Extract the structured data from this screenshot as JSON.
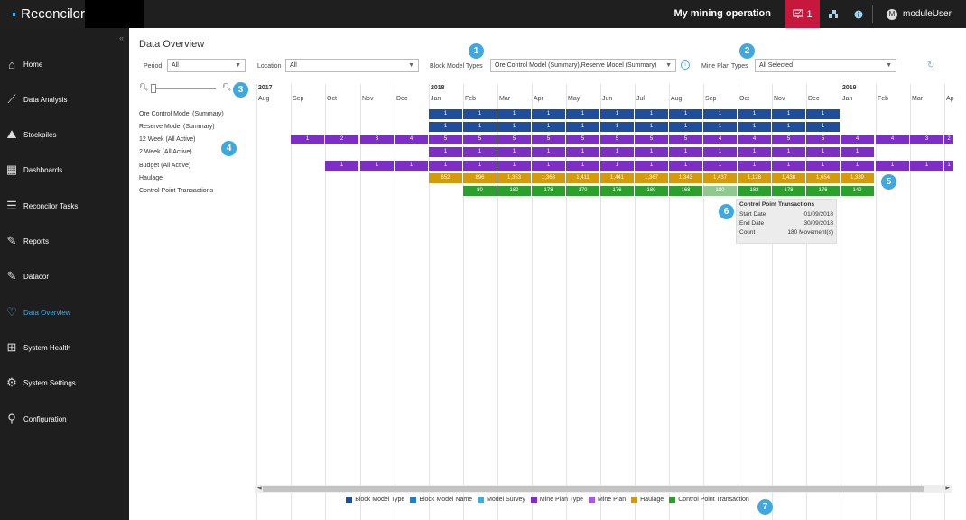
{
  "app": {
    "name": "Reconcilor"
  },
  "header": {
    "operation": "My mining operation",
    "notification_count": "1",
    "user_initial": "M",
    "user_name": "moduleUser"
  },
  "sidebar": {
    "items": [
      {
        "label": "Home",
        "icon": "home-icon",
        "glyph": "⌂"
      },
      {
        "label": "Data Analysis",
        "icon": "chart-line-icon",
        "glyph": "⟋"
      },
      {
        "label": "Stockpiles",
        "icon": "stockpile-icon",
        "glyph": "⛰"
      },
      {
        "label": "Dashboards",
        "icon": "dashboard-icon",
        "glyph": "▦"
      },
      {
        "label": "Reconcilor Tasks",
        "icon": "tasks-icon",
        "glyph": "☰"
      },
      {
        "label": "Reports",
        "icon": "reports-icon",
        "glyph": "✎"
      },
      {
        "label": "Datacor",
        "icon": "datacor-icon",
        "glyph": "✎"
      },
      {
        "label": "Data Overview",
        "icon": "heartbeat-icon",
        "glyph": "♡",
        "active": true
      },
      {
        "label": "System Health",
        "icon": "health-icon",
        "glyph": "⊞"
      },
      {
        "label": "System Settings",
        "icon": "settings-gear-icon",
        "glyph": "⚙"
      },
      {
        "label": "Configuration",
        "icon": "wrench-icon",
        "glyph": "⚲"
      }
    ]
  },
  "page": {
    "title": "Data Overview"
  },
  "filters": {
    "period_label": "Period",
    "period_value": "All",
    "location_label": "Location",
    "location_value": "All",
    "block_model_label": "Block Model Types",
    "block_model_value": "Ore Control Model (Summary),Reserve Model (Summary)",
    "mine_plan_label": "Mine Plan Types",
    "mine_plan_value": "All Selected"
  },
  "callouts": [
    "1",
    "2",
    "3",
    "4",
    "5",
    "6",
    "7"
  ],
  "timeline": {
    "years": [
      "2017",
      "2018",
      "2019"
    ],
    "months": [
      "Aug",
      "Sep",
      "Oct",
      "Nov",
      "Dec",
      "Jan",
      "Feb",
      "Mar",
      "Apr",
      "May",
      "Jun",
      "Jul",
      "Aug",
      "Sep",
      "Oct",
      "Nov",
      "Dec",
      "Jan",
      "Feb",
      "Mar",
      "Ap"
    ],
    "rows": [
      {
        "label": "Ore Control Model (Summary)",
        "color": "#1f4e9c",
        "start": 5,
        "values": [
          "1",
          "1",
          "1",
          "1",
          "1",
          "1",
          "1",
          "1",
          "1",
          "1",
          "1",
          "1"
        ]
      },
      {
        "label": "Reserve Model (Summary)",
        "color": "#1f4e9c",
        "start": 5,
        "values": [
          "1",
          "1",
          "1",
          "1",
          "1",
          "1",
          "1",
          "1",
          "1",
          "1",
          "1",
          "1"
        ]
      },
      {
        "label": "12 Week (All Active)",
        "color": "#7d2ec4",
        "start": 1,
        "values": [
          "1",
          "2",
          "3",
          "4",
          "5",
          "5",
          "5",
          "5",
          "5",
          "5",
          "5",
          "5",
          "4",
          "4",
          "5",
          "5",
          "4",
          "4",
          "3",
          "2",
          ""
        ]
      },
      {
        "label": "2 Week (All Active)",
        "color": "#7d2ec4",
        "start": 5,
        "values": [
          "1",
          "1",
          "1",
          "1",
          "1",
          "1",
          "1",
          "1",
          "1",
          "1",
          "1",
          "1",
          "1"
        ]
      },
      {
        "label": "Budget (All Active)",
        "color": "#7d2ec4",
        "start": 2,
        "values": [
          "1",
          "1",
          "1",
          "1",
          "1",
          "1",
          "1",
          "1",
          "1",
          "1",
          "1",
          "1",
          "1",
          "1",
          "1",
          "1",
          "1",
          "1",
          "1",
          ""
        ]
      },
      {
        "label": "Haulage",
        "color": "#d49a0d",
        "start": 5,
        "values": [
          "652",
          "896",
          "1,353",
          "1,368",
          "1,411",
          "1,441",
          "1,367",
          "1,343",
          "1,437",
          "1,128",
          "1,438",
          "1,654",
          "1,389"
        ]
      },
      {
        "label": "Control Point Transactions",
        "color": "#2ca02c",
        "start": 6,
        "values": [
          "80",
          "180",
          "178",
          "170",
          "176",
          "180",
          "168",
          "180",
          "182",
          "178",
          "176",
          "140"
        ],
        "highlight": 7
      }
    ]
  },
  "tooltip": {
    "title": "Control Point Transactions",
    "start_label": "Start Date",
    "start_value": "01/09/2018",
    "end_label": "End Date",
    "end_value": "30/09/2018",
    "count_label": "Count",
    "count_value": "180 Movement(s)"
  },
  "legend": [
    {
      "label": "Block Model Type",
      "color": "#1f4e9c"
    },
    {
      "label": "Block Model Name",
      "color": "#2b7bbf"
    },
    {
      "label": "Model Survey",
      "color": "#45a9dd"
    },
    {
      "label": "Mine Plan Type",
      "color": "#7d2ec4"
    },
    {
      "label": "Mine Plan",
      "color": "#a35ed9"
    },
    {
      "label": "Haulage",
      "color": "#d49a0d"
    },
    {
      "label": "Control Point Transaction",
      "color": "#2ca02c"
    }
  ]
}
